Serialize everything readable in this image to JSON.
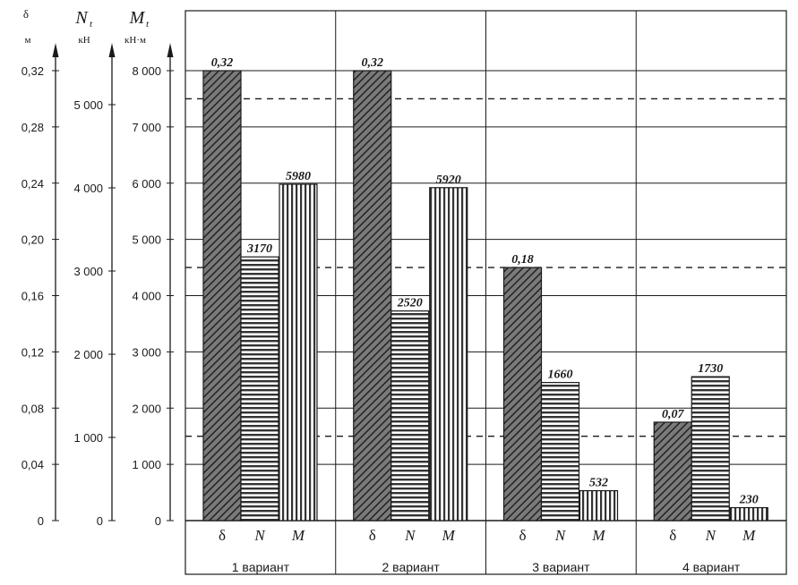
{
  "chart_data": {
    "type": "bar",
    "categories": [
      "1 вариант",
      "2 вариант",
      "3 вариант",
      "4 вариант"
    ],
    "series": [
      {
        "name": "δ",
        "axis_symbol": "δ",
        "axis_unit": "м",
        "values": [
          0.32,
          0.32,
          0.18,
          0.07
        ],
        "labels": [
          "0,32",
          "0,32",
          "0,18",
          "0,07"
        ],
        "pattern": "diagonal"
      },
      {
        "name": "N",
        "axis_symbol": "N",
        "axis_subscript": "t",
        "axis_unit": "кН",
        "values": [
          3170,
          2520,
          1660,
          1730
        ],
        "labels": [
          "3170",
          "2520",
          "1660",
          "1730"
        ],
        "pattern": "horizontal"
      },
      {
        "name": "M",
        "axis_symbol": "M",
        "axis_subscript": "t",
        "axis_unit": "кН·м",
        "values": [
          5980,
          5920,
          532,
          230
        ],
        "labels": [
          "5980",
          "5920",
          "532",
          "230"
        ],
        "pattern": "vertical"
      }
    ],
    "axes": {
      "delta": {
        "range": [
          0,
          0.32
        ],
        "ticks": [
          0,
          0.04,
          0.08,
          0.12,
          0.16,
          0.2,
          0.24,
          0.28,
          0.32
        ],
        "tick_labels": [
          "0",
          "0,04",
          "0,08",
          "0,12",
          "0,16",
          "0,20",
          "0,24",
          "0,28",
          "0,32"
        ]
      },
      "N": {
        "range": [
          0,
          5280
        ],
        "ticks": [
          0,
          1000,
          2000,
          3000,
          4000,
          5000
        ],
        "tick_labels": [
          "0",
          "1 000",
          "2 000",
          "3 000",
          "4 000",
          "5 000"
        ]
      },
      "M": {
        "range": [
          0,
          8000
        ],
        "ticks": [
          0,
          1000,
          2000,
          3000,
          4000,
          5000,
          6000,
          7000,
          8000
        ],
        "tick_labels": [
          "0",
          "1 000",
          "2 000",
          "3 000",
          "4 000",
          "5 000",
          "6 000",
          "7 000",
          "8 000"
        ]
      }
    },
    "grid": true,
    "reference_lines_M": [
      1500,
      4500,
      7500
    ],
    "xlabel": "",
    "title": ""
  }
}
